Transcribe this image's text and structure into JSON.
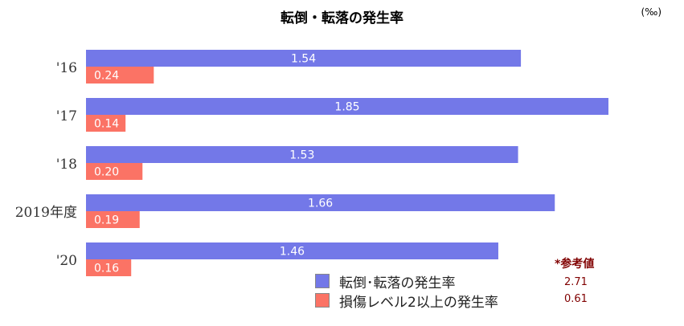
{
  "chart_data": {
    "type": "bar",
    "orientation": "horizontal",
    "title": "転倒・転落の発生率",
    "unit": "(‰)",
    "categories": [
      "'16",
      "'17",
      "'18",
      "2019年度",
      "'20"
    ],
    "series": [
      {
        "name": "転倒･転落の発生率",
        "values": [
          1.54,
          1.85,
          1.53,
          1.66,
          1.46
        ],
        "color": "#7378e8",
        "labels": [
          "1.54",
          "1.85",
          "1.53",
          "1.66",
          "1.46"
        ]
      },
      {
        "name": "損傷レベル2以上の発生率",
        "values": [
          0.24,
          0.14,
          0.2,
          0.19,
          0.16
        ],
        "color": "#fb7365",
        "labels": [
          "0.24",
          "0.14",
          "0.20",
          "0.19",
          "0.16"
        ]
      }
    ],
    "xlim": [
      0,
      1.85
    ],
    "legend": "bottom-right",
    "grid": false
  },
  "reference": {
    "title": "*参考値",
    "values": [
      "2.71",
      "0.61"
    ]
  }
}
